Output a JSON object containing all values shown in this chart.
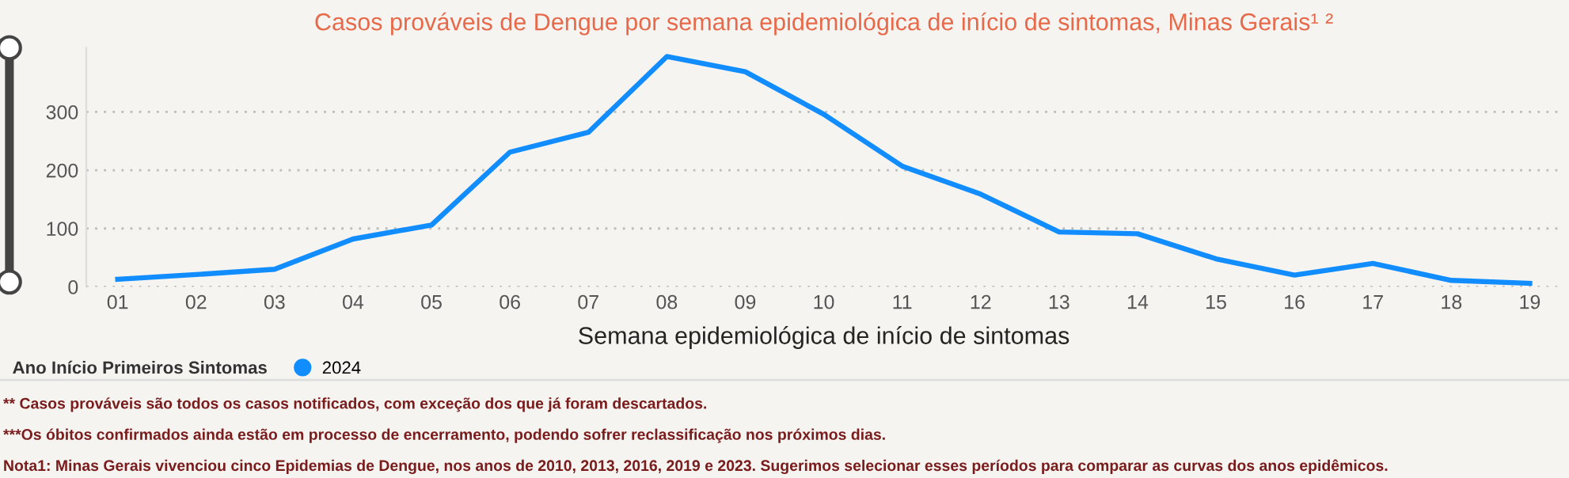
{
  "chart_data": {
    "type": "line",
    "title": "Casos prováveis de Dengue por semana epidemiológica de início de sintomas, Minas Gerais¹ ²",
    "xlabel": "Semana epidemiológica de início de sintomas",
    "categories": [
      "01",
      "02",
      "03",
      "04",
      "05",
      "06",
      "07",
      "08",
      "09",
      "10",
      "11",
      "12",
      "13",
      "14",
      "15",
      "16",
      "17",
      "18",
      "19"
    ],
    "series": [
      {
        "name": "2024",
        "color": "#118dff",
        "values": [
          13,
          21,
          30,
          82,
          106,
          231,
          265,
          395,
          369,
          296,
          207,
          159,
          94,
          91,
          48,
          20,
          40,
          11,
          6
        ]
      }
    ],
    "ylim": [
      0,
      410
    ],
    "yticks": [
      0,
      100,
      200,
      300
    ],
    "grid": "y",
    "legend": "bottom left",
    "legend_title": "Ano Início Primeiros Sintomas",
    "marker": "none",
    "line_style": "solid",
    "annotations": [
      "** Casos prováveis são todos os casos notificados, com exceção dos que já foram descartados.",
      "***Os óbitos confirmados ainda estão em processo de encerramento, podendo sofrer reclassificação nos próximos dias.",
      "Nota1: Minas Gerais vivenciou cinco Epidemias de Dengue, nos anos de 2010, 2013, 2016, 2019 e 2023. Sugerimos selecionar esses períodos para comparar as curvas dos anos epidêmicos."
    ]
  }
}
